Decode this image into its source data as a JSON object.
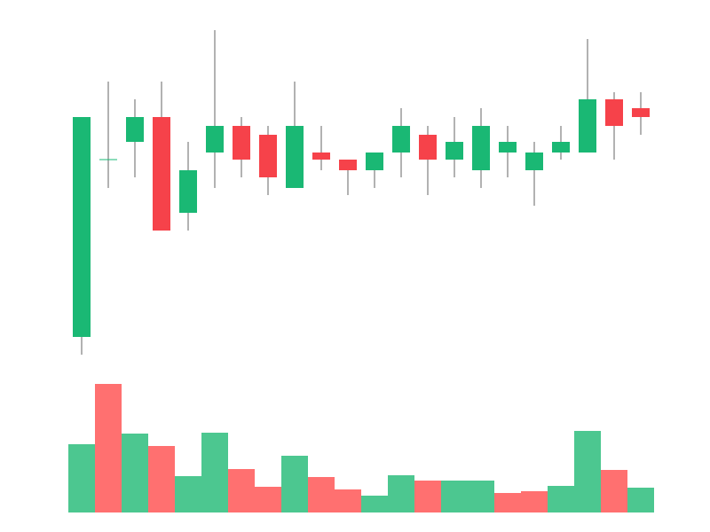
{
  "chart_data": {
    "type": "candlestick",
    "open": [
      10,
      60,
      65,
      72,
      45,
      62,
      69.5,
      67,
      52,
      62,
      60,
      57,
      62,
      67,
      60,
      57,
      62,
      57,
      62,
      62,
      77,
      74.5
    ],
    "high": [
      72,
      82,
      77,
      82,
      65,
      96.5,
      72,
      69.5,
      82,
      69.5,
      60,
      62,
      74.5,
      69.5,
      72,
      74.5,
      69.5,
      65,
      69.5,
      94,
      79,
      79
    ],
    "low": [
      5,
      52,
      55,
      40,
      40,
      52,
      55,
      50,
      52,
      57,
      50,
      52,
      55,
      50,
      55,
      52,
      55,
      47,
      60,
      62,
      60,
      67
    ],
    "close": [
      72,
      60,
      72,
      40,
      57,
      69.5,
      60,
      55,
      69.5,
      60,
      57,
      62,
      69.5,
      60,
      65,
      69.5,
      65,
      62,
      65,
      77,
      69.5,
      72
    ],
    "up_color": "#1ab874",
    "down_color": "#f6424a",
    "wick_color": "#666666",
    "ylim": [
      0,
      100
    ],
    "volume": {
      "values": [
        77,
        145,
        89,
        75,
        41,
        90,
        49,
        29,
        64,
        40,
        26,
        19,
        42,
        36,
        36,
        36,
        22,
        24,
        30,
        92,
        48,
        28
      ],
      "colors": [
        "#4cc790",
        "#ff7070",
        "#4cc790",
        "#ff7070",
        "#4cc790",
        "#4cc790",
        "#ff7070",
        "#ff7070",
        "#4cc790",
        "#ff7070",
        "#ff7070",
        "#4cc790",
        "#4cc790",
        "#ff7070",
        "#4cc790",
        "#4cc790",
        "#ff7070",
        "#ff7070",
        "#4cc790",
        "#4cc790",
        "#ff7070",
        "#4cc790"
      ],
      "ylim": [
        0,
        150
      ]
    }
  }
}
